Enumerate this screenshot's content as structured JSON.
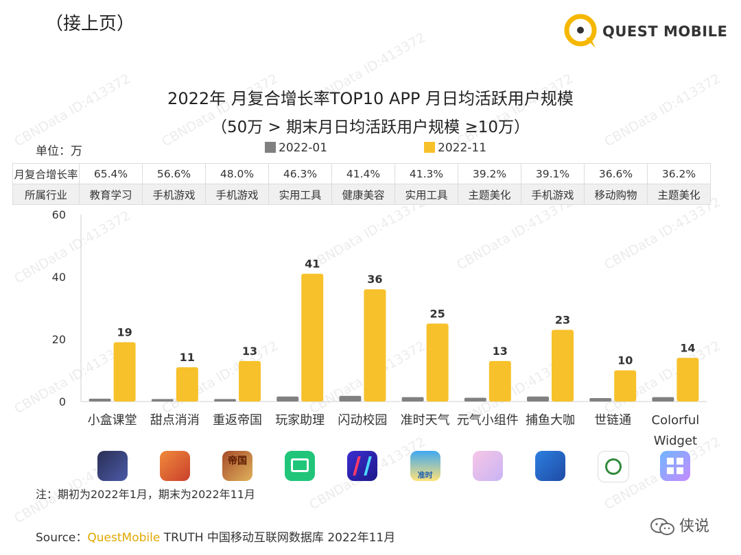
{
  "header": {
    "continued": "（接上页）",
    "brand": "QUEST MOBILE"
  },
  "colors": {
    "bar_2022_01": "#808080",
    "bar_2022_11": "#f7c12b",
    "brand_accent": "#f5b700"
  },
  "watermark_text": "CBNData ID:413372",
  "table": {
    "rows": [
      {
        "label": "月复合增长率",
        "cells": [
          "65.4%",
          "56.6%",
          "48.0%",
          "46.3%",
          "41.4%",
          "41.3%",
          "39.2%",
          "39.1%",
          "36.6%",
          "36.2%"
        ]
      },
      {
        "label": "所属行业",
        "cells": [
          "教育学习",
          "手机游戏",
          "手机游戏",
          "实用工具",
          "健康美容",
          "实用工具",
          "主题美化",
          "手机游戏",
          "移动购物",
          "主题美化"
        ]
      }
    ]
  },
  "chart_data": {
    "type": "bar",
    "title": "2022年 月复合增长率TOP10 APP 月日均活跃用户规模",
    "subtitle": "（50万 > 期末月日均活跃用户规模 ≥10万）",
    "unit_label": "单位：万",
    "categories": [
      "小盒课堂",
      "甜点消消",
      "重返帝国",
      "玩家助理",
      "闪动校园",
      "准时天气",
      "元气小组件",
      "捕鱼大咖",
      "世链通",
      "Colorful Widget"
    ],
    "series": [
      {
        "name": "2022-01",
        "values": [
          0.9,
          0.8,
          0.8,
          1.6,
          1.8,
          1.4,
          1.2,
          1.6,
          1.1,
          1.4
        ]
      },
      {
        "name": "2022-11",
        "values": [
          19,
          11,
          13,
          41,
          36,
          25,
          13,
          23,
          10,
          14
        ]
      }
    ],
    "data_labels": [
      "19",
      "11",
      "13",
      "41",
      "36",
      "25",
      "13",
      "23",
      "10",
      "14"
    ],
    "y_ticks": [
      "0",
      "20",
      "40",
      "60"
    ],
    "ylim": [
      0,
      60
    ],
    "legend_position": "top"
  },
  "app_icons": [
    "xiaohe-ketang-icon",
    "tiandian-xiaoxiao-icon",
    "chongfan-diguo-icon",
    "wanjia-zhuli-icon",
    "shandong-xiaoyuan-icon",
    "zhunshi-tianqi-icon",
    "yuanqi-xiaozujian-icon",
    "buyu-daka-icon",
    "shilian-tong-icon",
    "colorful-widget-icon"
  ],
  "app_icon_texts": {
    "chongfan": "帝国",
    "zhunshi": "准时"
  },
  "footer": {
    "note": "注：期初为2022年1月，期末为2022年11月",
    "source_prefix": "Source：",
    "source_brand": "QuestMobile",
    "source_rest": " TRUTH 中国移动互联网数据库 2022年11月",
    "wechat_account": "侠说"
  }
}
